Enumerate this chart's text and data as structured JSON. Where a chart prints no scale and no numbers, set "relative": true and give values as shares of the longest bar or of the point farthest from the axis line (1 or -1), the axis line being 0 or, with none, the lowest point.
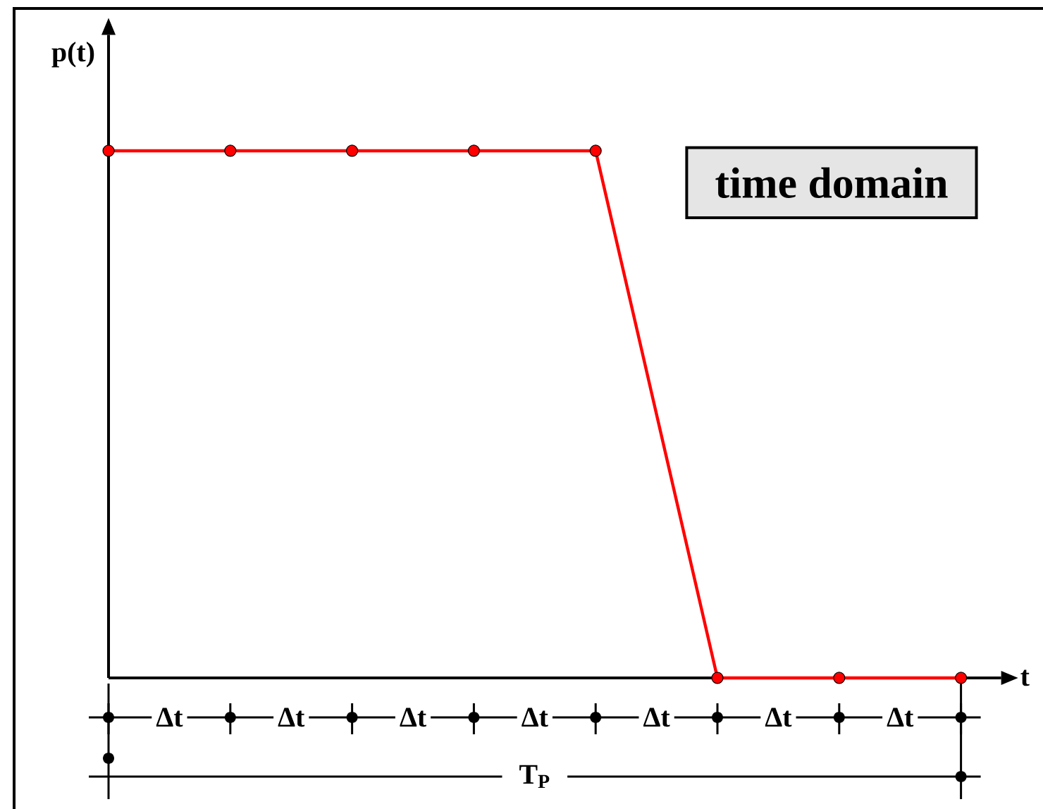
{
  "chart_data": {
    "type": "line",
    "relative": true,
    "xlabel": "t",
    "ylabel": "p(t)",
    "categories": [
      null,
      null,
      null,
      null,
      null,
      null,
      null,
      null
    ],
    "series": [
      {
        "color": "#ff0000",
        "values": [
          1,
          1,
          1,
          1,
          1,
          0,
          0,
          0
        ]
      }
    ],
    "marker": "circle",
    "line_style": "solid",
    "annotations": [
      "time domain",
      "Δt",
      "Δt",
      "Δt",
      "Δt",
      "Δt",
      "Δt",
      "Δt",
      "T$_{P}$"
    ]
  }
}
